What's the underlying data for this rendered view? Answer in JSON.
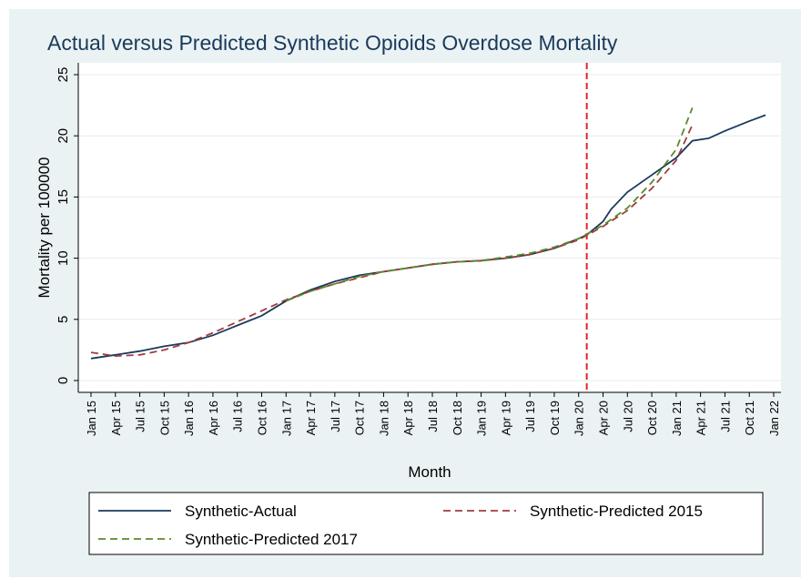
{
  "chart_data": {
    "type": "line",
    "title": "Actual versus Predicted Synthetic Opioids Overdose Mortality",
    "xlabel": "Month",
    "ylabel": "Mortality per 100000",
    "ylim": [
      0,
      25
    ],
    "yticks": [
      0,
      5,
      10,
      15,
      20,
      25
    ],
    "xlim": [
      "2015-01",
      "2022-01"
    ],
    "xtick_labels": [
      "Jan 15",
      "Apr 15",
      "Jul 15",
      "Oct 15",
      "Jan 16",
      "Apr 16",
      "Jul 16",
      "Oct 16",
      "Jan 17",
      "Apr 17",
      "Jul 17",
      "Oct 17",
      "Jan 18",
      "Apr 18",
      "Jul 18",
      "Oct 18",
      "Jan 19",
      "Apr 19",
      "Jul 19",
      "Oct 19",
      "Jan 20",
      "Apr 20",
      "Jul 20",
      "Oct 20",
      "Jan 21",
      "Apr 21",
      "Jul 21",
      "Oct 21",
      "Jan 22"
    ],
    "grid": true,
    "legend_position": "bottom",
    "reference_line": {
      "x": "2020-02",
      "style": "dashed",
      "color": "#e8202a"
    },
    "series": [
      {
        "name": "Synthetic-Actual",
        "color": "#1a3a5c",
        "dash": "solid",
        "points": [
          [
            "2015-01",
            1.8
          ],
          [
            "2015-04",
            2.1
          ],
          [
            "2015-07",
            2.4
          ],
          [
            "2015-10",
            2.8
          ],
          [
            "2016-01",
            3.1
          ],
          [
            "2016-04",
            3.7
          ],
          [
            "2016-07",
            4.5
          ],
          [
            "2016-10",
            5.3
          ],
          [
            "2017-01",
            6.5
          ],
          [
            "2017-04",
            7.4
          ],
          [
            "2017-07",
            8.1
          ],
          [
            "2017-10",
            8.6
          ],
          [
            "2018-01",
            8.9
          ],
          [
            "2018-04",
            9.2
          ],
          [
            "2018-07",
            9.5
          ],
          [
            "2018-10",
            9.7
          ],
          [
            "2019-01",
            9.8
          ],
          [
            "2019-04",
            10.0
          ],
          [
            "2019-07",
            10.3
          ],
          [
            "2019-10",
            10.8
          ],
          [
            "2020-01",
            11.6
          ],
          [
            "2020-02",
            11.9
          ],
          [
            "2020-04",
            13.0
          ],
          [
            "2020-05",
            14.0
          ],
          [
            "2020-07",
            15.4
          ],
          [
            "2020-10",
            16.8
          ],
          [
            "2021-01",
            18.2
          ],
          [
            "2021-03",
            19.6
          ],
          [
            "2021-05",
            19.8
          ],
          [
            "2021-07",
            20.4
          ],
          [
            "2021-10",
            21.2
          ],
          [
            "2021-12",
            21.7
          ]
        ]
      },
      {
        "name": "Synthetic-Predicted 2015",
        "color": "#a03c3c",
        "dash": "dashed",
        "points": [
          [
            "2015-01",
            2.3
          ],
          [
            "2015-04",
            2.0
          ],
          [
            "2015-07",
            2.1
          ],
          [
            "2015-10",
            2.5
          ],
          [
            "2016-01",
            3.1
          ],
          [
            "2016-04",
            3.9
          ],
          [
            "2016-07",
            4.8
          ],
          [
            "2016-10",
            5.7
          ],
          [
            "2017-01",
            6.6
          ],
          [
            "2017-04",
            7.3
          ],
          [
            "2017-07",
            7.9
          ],
          [
            "2017-10",
            8.4
          ],
          [
            "2018-01",
            8.9
          ],
          [
            "2018-04",
            9.2
          ],
          [
            "2018-07",
            9.5
          ],
          [
            "2018-10",
            9.7
          ],
          [
            "2019-01",
            9.8
          ],
          [
            "2019-04",
            10.0
          ],
          [
            "2019-07",
            10.3
          ],
          [
            "2019-10",
            10.8
          ],
          [
            "2020-01",
            11.5
          ],
          [
            "2020-04",
            12.6
          ],
          [
            "2020-07",
            13.9
          ],
          [
            "2020-10",
            15.7
          ],
          [
            "2021-01",
            18.0
          ],
          [
            "2021-03",
            20.9
          ]
        ]
      },
      {
        "name": "Synthetic-Predicted 2017",
        "color": "#5a8a2a",
        "dash": "dashed",
        "points": [
          [
            "2017-01",
            6.5
          ],
          [
            "2017-04",
            7.3
          ],
          [
            "2017-07",
            7.9
          ],
          [
            "2017-10",
            8.5
          ],
          [
            "2018-01",
            8.9
          ],
          [
            "2018-04",
            9.2
          ],
          [
            "2018-07",
            9.5
          ],
          [
            "2018-10",
            9.7
          ],
          [
            "2019-01",
            9.8
          ],
          [
            "2019-04",
            10.1
          ],
          [
            "2019-07",
            10.4
          ],
          [
            "2019-10",
            10.9
          ],
          [
            "2020-01",
            11.6
          ],
          [
            "2020-04",
            12.7
          ],
          [
            "2020-07",
            14.1
          ],
          [
            "2020-10",
            16.2
          ],
          [
            "2021-01",
            18.9
          ],
          [
            "2021-03",
            22.3
          ]
        ]
      }
    ]
  }
}
